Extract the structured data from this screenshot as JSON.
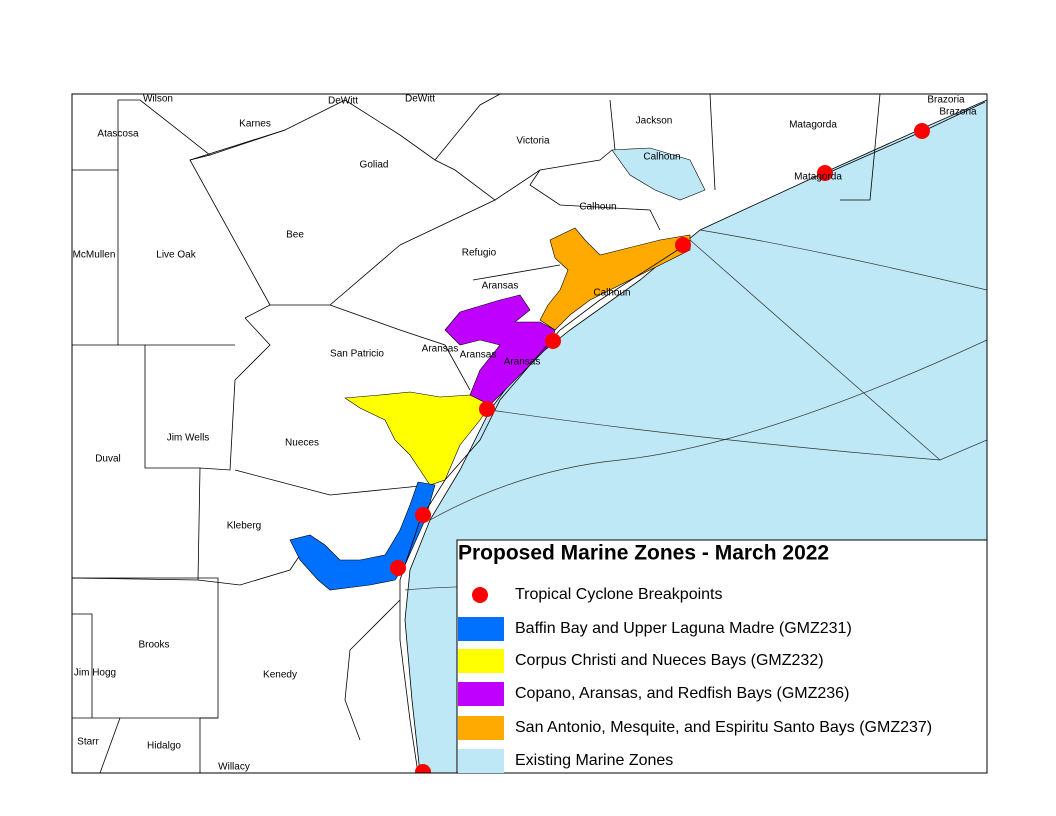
{
  "map": {
    "labels": [
      "Wilson",
      "DeWitt",
      "DeWitt",
      "Brazoria",
      "Brazoria",
      "Atascosa",
      "Karnes",
      "Jackson",
      "Matagorda",
      "Victoria",
      "Goliad",
      "Calhoun",
      "Matagorda",
      "Calhoun",
      "Bee",
      "McMullen",
      "Live Oak",
      "Refugio",
      "Aransas",
      "Calhoun",
      "San Patricio",
      "Aransas",
      "Aransas",
      "Aransas",
      "Jim Wells",
      "Nueces",
      "Duval",
      "Kleberg",
      "Brooks",
      "Jim Hogg",
      "Kenedy",
      "Starr",
      "Hidalgo",
      "Willacy"
    ]
  },
  "legend": {
    "title": "Proposed Marine Zones - March 2022",
    "items": [
      {
        "text": "Tropical Cyclone Breakpoints",
        "color": "#ff0000",
        "shape": "dot"
      },
      {
        "text": "Baffin Bay and Upper Laguna Madre (GMZ231)",
        "color": "#0070ff",
        "shape": "box"
      },
      {
        "text": "Corpus Christi and Nueces Bays (GMZ232)",
        "color": "#ffff00",
        "shape": "box"
      },
      {
        "text": "Copano, Aransas, and Redfish Bays (GMZ236)",
        "color": "#c000ff",
        "shape": "box"
      },
      {
        "text": "San Antonio, Mesquite, and Espiritu Santo Bays (GMZ237)",
        "color": "#ffaa00",
        "shape": "box"
      },
      {
        "text": "Existing Marine Zones",
        "color": "#bee8f5",
        "shape": "box"
      }
    ]
  }
}
